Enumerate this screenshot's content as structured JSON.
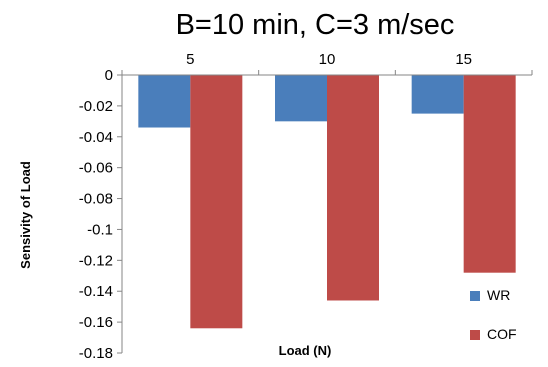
{
  "chart_data": {
    "type": "bar",
    "title": "B=10 min, C=3 m/sec",
    "xlabel": "Load (N)",
    "ylabel": "Sensivity of Load",
    "categories": [
      "5",
      "10",
      "15"
    ],
    "series": [
      {
        "name": "WR",
        "values": [
          -0.034,
          -0.03,
          -0.025
        ],
        "color": "#4a7ebb"
      },
      {
        "name": "COF",
        "values": [
          -0.164,
          -0.146,
          -0.128
        ],
        "color": "#be4b48"
      }
    ],
    "ylim": [
      -0.18,
      0
    ],
    "yticks": [
      "0",
      "-0.02",
      "-0.04",
      "-0.06",
      "-0.08",
      "-0.1",
      "-0.12",
      "-0.14",
      "-0.16",
      "-0.18"
    ],
    "ytick_values": [
      0,
      -0.02,
      -0.04,
      -0.06,
      -0.08,
      -0.1,
      -0.12,
      -0.14,
      -0.16,
      -0.18
    ],
    "xaxis_position": "top",
    "legend_position": "bottom-right",
    "grid": false
  }
}
